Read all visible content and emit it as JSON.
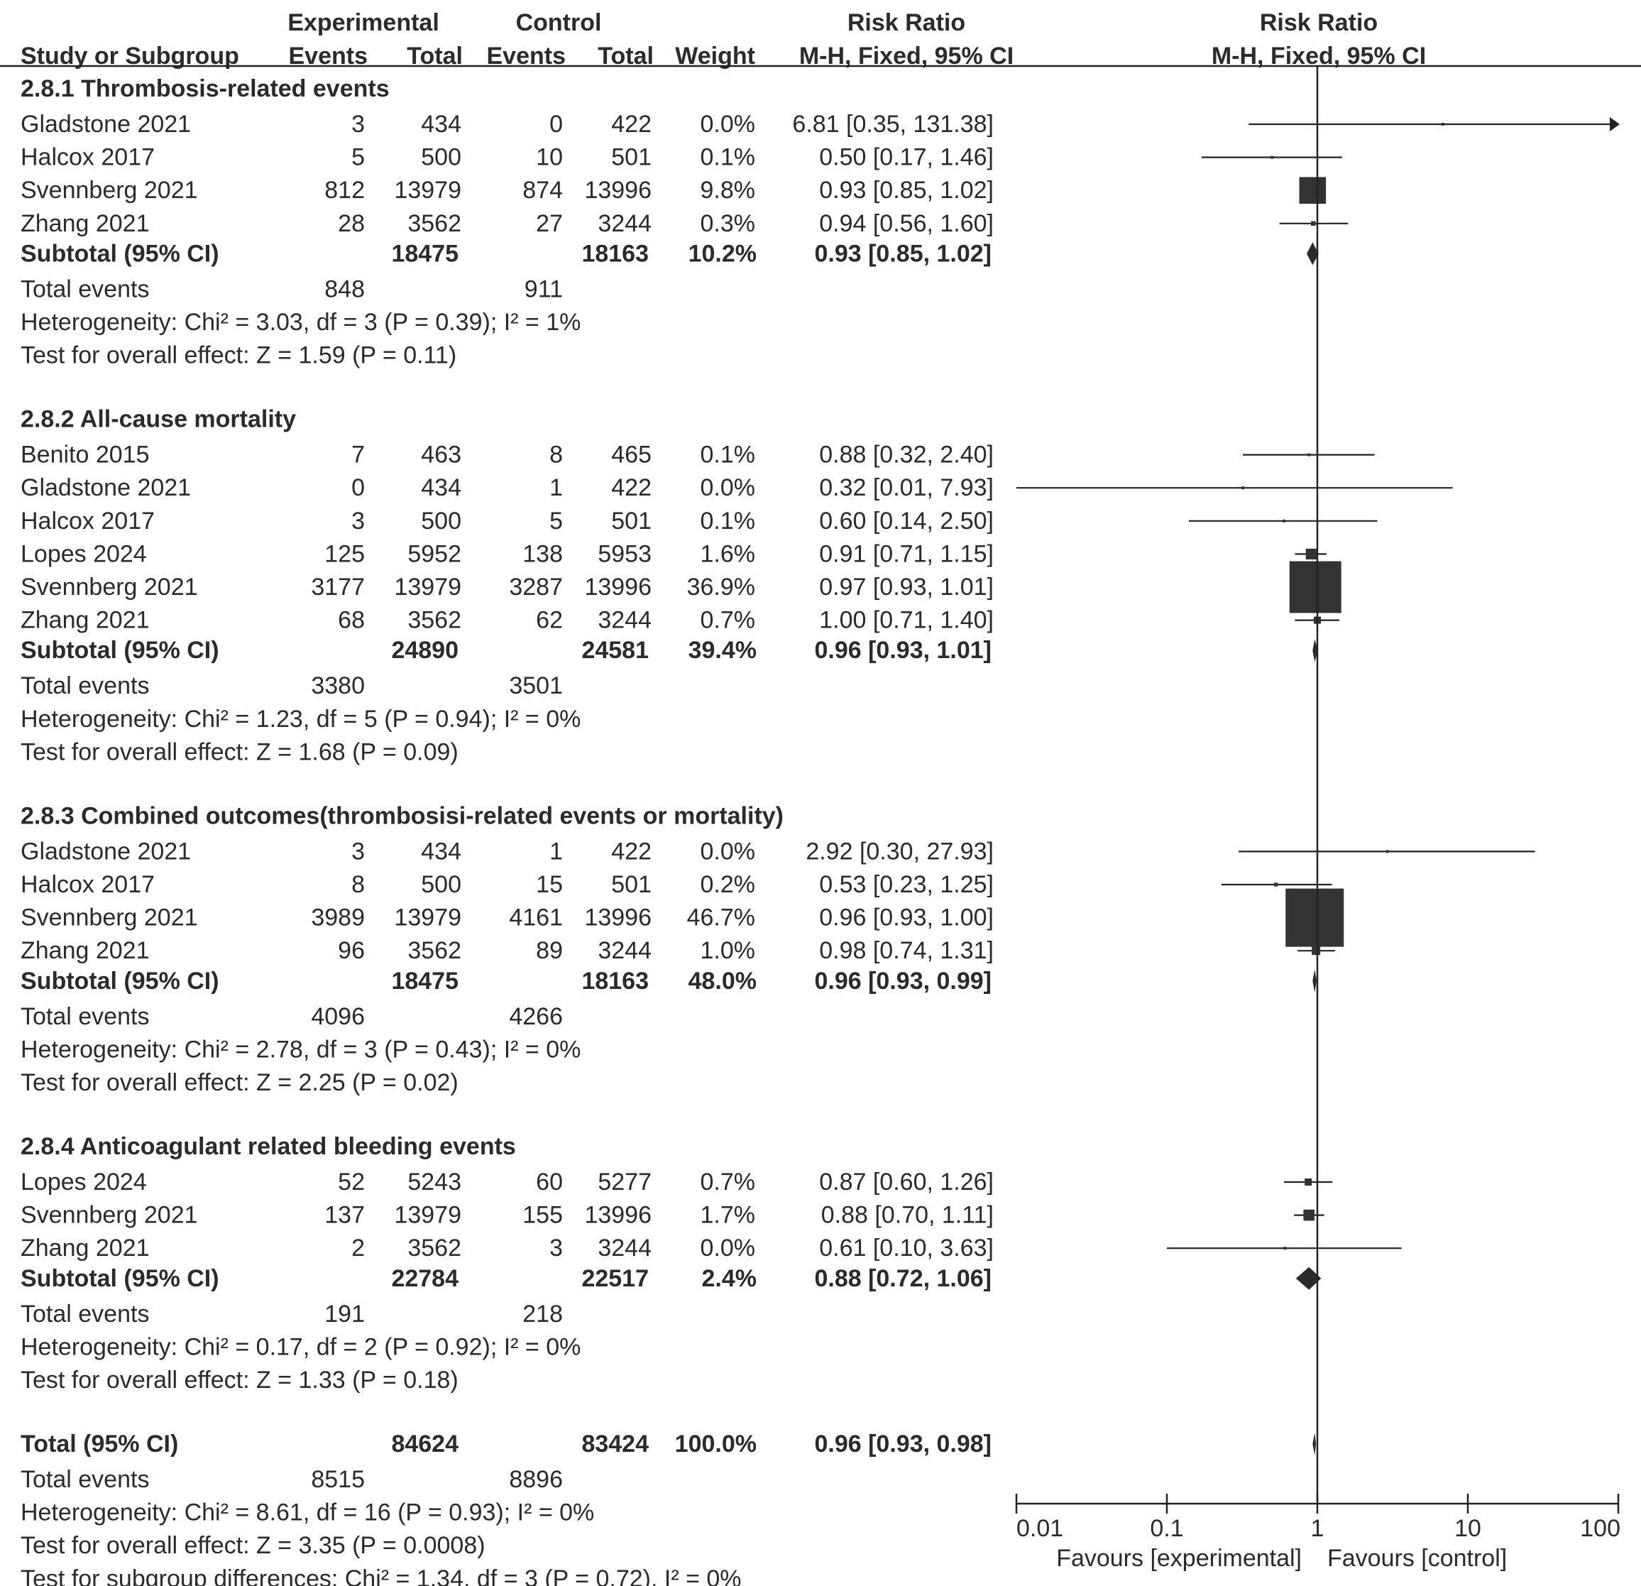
{
  "chart_data": {
    "type": "forest",
    "header": {
      "experimental_group": "Experimental",
      "control_group": "Control",
      "rr_group": "Risk Ratio",
      "plot_group": "Risk Ratio",
      "study": "Study or Subgroup",
      "events": "Events",
      "total": "Total",
      "weight": "Weight",
      "method": "M-H, Fixed, 95% CI",
      "plot_method": "M-H, Fixed, 95% CI"
    },
    "subgroups": [
      {
        "title": "2.8.1 Thrombosis-related events",
        "studies": [
          {
            "name": "Gladstone 2021",
            "exp_events": "3",
            "exp_total": "434",
            "ctl_events": "0",
            "ctl_total": "422",
            "weight": "0.0%",
            "ci_text": "6.81 [0.35, 131.38]",
            "rr": 6.81,
            "lo": 0.35,
            "hi": 131.38,
            "w": 0.0
          },
          {
            "name": "Halcox 2017",
            "exp_events": "5",
            "exp_total": "500",
            "ctl_events": "10",
            "ctl_total": "501",
            "weight": "0.1%",
            "ci_text": "0.50 [0.17, 1.46]",
            "rr": 0.5,
            "lo": 0.17,
            "hi": 1.46,
            "w": 0.1
          },
          {
            "name": "Svennberg 2021",
            "exp_events": "812",
            "exp_total": "13979",
            "ctl_events": "874",
            "ctl_total": "13996",
            "weight": "9.8%",
            "ci_text": "0.93 [0.85, 1.02]",
            "rr": 0.93,
            "lo": 0.85,
            "hi": 1.02,
            "w": 9.8
          },
          {
            "name": "Zhang 2021",
            "exp_events": "28",
            "exp_total": "3562",
            "ctl_events": "27",
            "ctl_total": "3244",
            "weight": "0.3%",
            "ci_text": "0.94 [0.56, 1.60]",
            "rr": 0.94,
            "lo": 0.56,
            "hi": 1.6,
            "w": 0.3
          }
        ],
        "subtotal": {
          "label": "Subtotal (95% CI)",
          "exp_total": "18475",
          "ctl_total": "18163",
          "weight": "10.2%",
          "ci_text": "0.93 [0.85, 1.02]",
          "rr": 0.93,
          "lo": 0.85,
          "hi": 1.02
        },
        "total_events": {
          "label": "Total events",
          "exp": "848",
          "ctl": "911"
        },
        "heterogeneity": "Heterogeneity: Chi² = 3.03, df = 3 (P = 0.39); I² = 1%",
        "overall": "Test for overall effect: Z = 1.59 (P = 0.11)"
      },
      {
        "title": "2.8.2 All-cause mortality",
        "studies": [
          {
            "name": "Benito 2015",
            "exp_events": "7",
            "exp_total": "463",
            "ctl_events": "8",
            "ctl_total": "465",
            "weight": "0.1%",
            "ci_text": "0.88 [0.32, 2.40]",
            "rr": 0.88,
            "lo": 0.32,
            "hi": 2.4,
            "w": 0.1
          },
          {
            "name": "Gladstone 2021",
            "exp_events": "0",
            "exp_total": "434",
            "ctl_events": "1",
            "ctl_total": "422",
            "weight": "0.0%",
            "ci_text": "0.32 [0.01, 7.93]",
            "rr": 0.32,
            "lo": 0.01,
            "hi": 7.93,
            "w": 0.0
          },
          {
            "name": "Halcox 2017",
            "exp_events": "3",
            "exp_total": "500",
            "ctl_events": "5",
            "ctl_total": "501",
            "weight": "0.1%",
            "ci_text": "0.60 [0.14, 2.50]",
            "rr": 0.6,
            "lo": 0.14,
            "hi": 2.5,
            "w": 0.1
          },
          {
            "name": "Lopes 2024",
            "exp_events": "125",
            "exp_total": "5952",
            "ctl_events": "138",
            "ctl_total": "5953",
            "weight": "1.6%",
            "ci_text": "0.91 [0.71, 1.15]",
            "rr": 0.91,
            "lo": 0.71,
            "hi": 1.15,
            "w": 1.6
          },
          {
            "name": "Svennberg 2021",
            "exp_events": "3177",
            "exp_total": "13979",
            "ctl_events": "3287",
            "ctl_total": "13996",
            "weight": "36.9%",
            "ci_text": "0.97 [0.93, 1.01]",
            "rr": 0.97,
            "lo": 0.93,
            "hi": 1.01,
            "w": 36.9
          },
          {
            "name": "Zhang 2021",
            "exp_events": "68",
            "exp_total": "3562",
            "ctl_events": "62",
            "ctl_total": "3244",
            "weight": "0.7%",
            "ci_text": "1.00 [0.71, 1.40]",
            "rr": 1.0,
            "lo": 0.71,
            "hi": 1.4,
            "w": 0.7
          }
        ],
        "subtotal": {
          "label": "Subtotal (95% CI)",
          "exp_total": "24890",
          "ctl_total": "24581",
          "weight": "39.4%",
          "ci_text": "0.96 [0.93, 1.01]",
          "rr": 0.96,
          "lo": 0.93,
          "hi": 1.01
        },
        "total_events": {
          "label": "Total events",
          "exp": "3380",
          "ctl": "3501"
        },
        "heterogeneity": "Heterogeneity: Chi² = 1.23, df = 5 (P = 0.94); I² = 0%",
        "overall": "Test for overall effect: Z = 1.68 (P = 0.09)"
      },
      {
        "title": "2.8.3 Combined outcomes(thrombosisi-related events or mortality)",
        "studies": [
          {
            "name": "Gladstone 2021",
            "exp_events": "3",
            "exp_total": "434",
            "ctl_events": "1",
            "ctl_total": "422",
            "weight": "0.0%",
            "ci_text": "2.92 [0.30, 27.93]",
            "rr": 2.92,
            "lo": 0.3,
            "hi": 27.93,
            "w": 0.0
          },
          {
            "name": "Halcox 2017",
            "exp_events": "8",
            "exp_total": "500",
            "ctl_events": "15",
            "ctl_total": "501",
            "weight": "0.2%",
            "ci_text": "0.53 [0.23, 1.25]",
            "rr": 0.53,
            "lo": 0.23,
            "hi": 1.25,
            "w": 0.2
          },
          {
            "name": "Svennberg 2021",
            "exp_events": "3989",
            "exp_total": "13979",
            "ctl_events": "4161",
            "ctl_total": "13996",
            "weight": "46.7%",
            "ci_text": "0.96 [0.93, 1.00]",
            "rr": 0.96,
            "lo": 0.93,
            "hi": 1.0,
            "w": 46.7
          },
          {
            "name": "Zhang 2021",
            "exp_events": "96",
            "exp_total": "3562",
            "ctl_events": "89",
            "ctl_total": "3244",
            "weight": "1.0%",
            "ci_text": "0.98 [0.74, 1.31]",
            "rr": 0.98,
            "lo": 0.74,
            "hi": 1.31,
            "w": 1.0
          }
        ],
        "subtotal": {
          "label": "Subtotal (95% CI)",
          "exp_total": "18475",
          "ctl_total": "18163",
          "weight": "48.0%",
          "ci_text": "0.96 [0.93, 0.99]",
          "rr": 0.96,
          "lo": 0.93,
          "hi": 0.99
        },
        "total_events": {
          "label": "Total events",
          "exp": "4096",
          "ctl": "4266"
        },
        "heterogeneity": "Heterogeneity: Chi² = 2.78, df = 3 (P = 0.43); I² = 0%",
        "overall": "Test for overall effect: Z = 2.25 (P = 0.02)"
      },
      {
        "title": "2.8.4 Anticoagulant related bleeding events",
        "studies": [
          {
            "name": "Lopes 2024",
            "exp_events": "52",
            "exp_total": "5243",
            "ctl_events": "60",
            "ctl_total": "5277",
            "weight": "0.7%",
            "ci_text": "0.87 [0.60, 1.26]",
            "rr": 0.87,
            "lo": 0.6,
            "hi": 1.26,
            "w": 0.7
          },
          {
            "name": "Svennberg 2021",
            "exp_events": "137",
            "exp_total": "13979",
            "ctl_events": "155",
            "ctl_total": "13996",
            "weight": "1.7%",
            "ci_text": "0.88 [0.70, 1.11]",
            "rr": 0.88,
            "lo": 0.7,
            "hi": 1.11,
            "w": 1.7
          },
          {
            "name": "Zhang 2021",
            "exp_events": "2",
            "exp_total": "3562",
            "ctl_events": "3",
            "ctl_total": "3244",
            "weight": "0.0%",
            "ci_text": "0.61 [0.10, 3.63]",
            "rr": 0.61,
            "lo": 0.1,
            "hi": 3.63,
            "w": 0.0
          }
        ],
        "subtotal": {
          "label": "Subtotal (95% CI)",
          "exp_total": "22784",
          "ctl_total": "22517",
          "weight": "2.4%",
          "ci_text": "0.88 [0.72, 1.06]",
          "rr": 0.88,
          "lo": 0.72,
          "hi": 1.06
        },
        "total_events": {
          "label": "Total events",
          "exp": "191",
          "ctl": "218"
        },
        "heterogeneity": "Heterogeneity: Chi² = 0.17, df = 2 (P = 0.92); I² = 0%",
        "overall": "Test for overall effect: Z = 1.33 (P = 0.18)"
      }
    ],
    "overall_total": {
      "label": "Total (95% CI)",
      "exp_total": "84624",
      "ctl_total": "83424",
      "weight": "100.0%",
      "ci_text": "0.96 [0.93, 0.98]",
      "rr": 0.96,
      "lo": 0.93,
      "hi": 0.98,
      "total_events": {
        "label": "Total events",
        "exp": "8515",
        "ctl": "8896"
      },
      "heterogeneity": "Heterogeneity: Chi² = 8.61, df = 16 (P = 0.93); I² = 0%",
      "overall": "Test for overall effect: Z = 3.35 (P = 0.0008)",
      "subgroup_diff": "Test for subgroup differences: Chi² = 1.34, df = 3 (P = 0.72), I² = 0%"
    },
    "x_axis": {
      "scale": "log",
      "range": [
        0.01,
        100
      ],
      "ticks": [
        0.01,
        0.1,
        1,
        10,
        100
      ],
      "tick_labels": [
        "0.01",
        "0.1",
        "1",
        "10",
        "100"
      ],
      "favours_left": "Favours [experimental]",
      "favours_right": "Favours [control]"
    },
    "colors": {
      "text": "#2b2b2b",
      "marker": "#333333",
      "line": "#222222"
    }
  }
}
